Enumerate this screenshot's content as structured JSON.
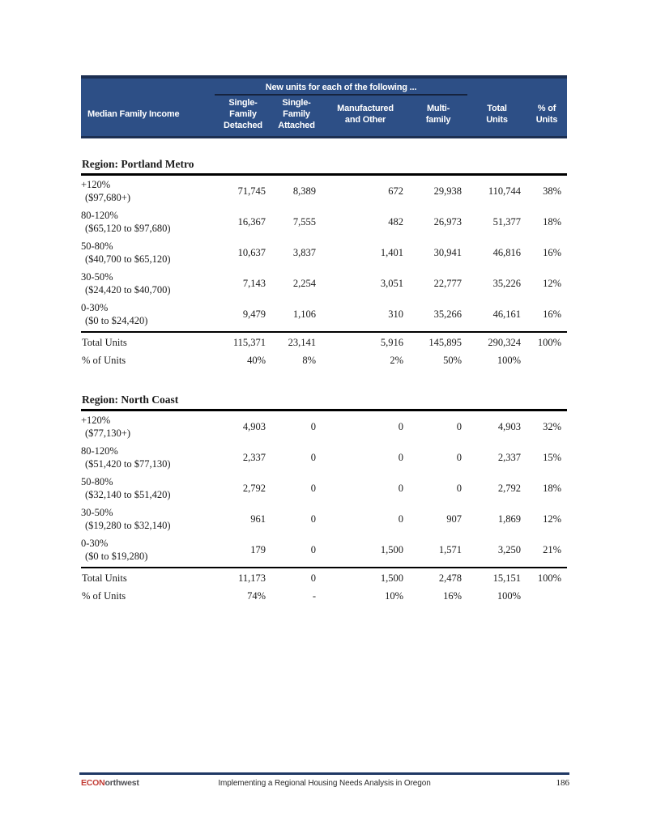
{
  "table": {
    "group_header": "New units for each of the following ...",
    "income_header": "Median Family Income",
    "columns": [
      "Single-\nFamily\nDetached",
      "Single-\nFamily\nAttached",
      "Manufactured\nand Other",
      "Multi-\nfamily",
      "Total\nUnits",
      "% of\nUnits"
    ]
  },
  "regions": [
    {
      "title": "Region: Portland Metro",
      "rows": [
        {
          "range": "+120%",
          "dollars": "($97,680+)",
          "values": [
            "71,745",
            "8,389",
            "672",
            "29,938",
            "110,744",
            "38%"
          ]
        },
        {
          "range": "80-120%",
          "dollars": "($65,120 to $97,680)",
          "values": [
            "16,367",
            "7,555",
            "482",
            "26,973",
            "51,377",
            "18%"
          ]
        },
        {
          "range": "50-80%",
          "dollars": "($40,700 to $65,120)",
          "values": [
            "10,637",
            "3,837",
            "1,401",
            "30,941",
            "46,816",
            "16%"
          ]
        },
        {
          "range": "30-50%",
          "dollars": "($24,420 to $40,700)",
          "values": [
            "7,143",
            "2,254",
            "3,051",
            "22,777",
            "35,226",
            "12%"
          ]
        },
        {
          "range": "0-30%",
          "dollars": "($0 to $24,420)",
          "values": [
            "9,479",
            "1,106",
            "310",
            "35,266",
            "46,161",
            "16%"
          ]
        }
      ],
      "total_label": "Total Units",
      "total_values": [
        "115,371",
        "23,141",
        "5,916",
        "145,895",
        "290,324",
        "100%"
      ],
      "pct_label": "% of Units",
      "pct_values": [
        "40%",
        "8%",
        "2%",
        "50%",
        "100%",
        ""
      ]
    },
    {
      "title": "Region: North Coast",
      "rows": [
        {
          "range": "+120%",
          "dollars": "($77,130+)",
          "values": [
            "4,903",
            "0",
            "0",
            "0",
            "4,903",
            "32%"
          ]
        },
        {
          "range": "80-120%",
          "dollars": "($51,420 to $77,130)",
          "values": [
            "2,337",
            "0",
            "0",
            "0",
            "2,337",
            "15%"
          ]
        },
        {
          "range": "50-80%",
          "dollars": "($32,140 to $51,420)",
          "values": [
            "2,792",
            "0",
            "0",
            "0",
            "2,792",
            "18%"
          ]
        },
        {
          "range": "30-50%",
          "dollars": "($19,280 to $32,140)",
          "values": [
            "961",
            "0",
            "0",
            "907",
            "1,869",
            "12%"
          ]
        },
        {
          "range": "0-30%",
          "dollars": "($0 to $19,280)",
          "values": [
            "179",
            "0",
            "1,500",
            "1,571",
            "3,250",
            "21%"
          ]
        }
      ],
      "total_label": "Total Units",
      "total_values": [
        "11,173",
        "0",
        "1,500",
        "2,478",
        "15,151",
        "100%"
      ],
      "pct_label": "% of Units",
      "pct_values": [
        "74%",
        "-",
        "10%",
        "16%",
        "100%",
        ""
      ]
    }
  ],
  "footer": {
    "brand_red": "ECON",
    "brand_rest": "orthwest",
    "center_text": "Implementing a Regional Housing Needs Analysis in Oregon",
    "page_number": "186"
  }
}
